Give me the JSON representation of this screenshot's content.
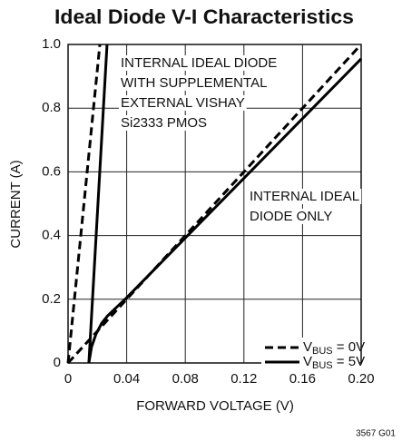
{
  "chart_data": {
    "type": "line",
    "title": "Ideal Diode V-I Characteristics",
    "xlabel": "FORWARD VOLTAGE (V)",
    "ylabel": "CURRENT (A)",
    "xlim": [
      0,
      0.2
    ],
    "ylim": [
      0,
      1
    ],
    "xticks": [
      0,
      0.04,
      0.08,
      0.12,
      0.16,
      {
        "value": 0.2,
        "label": "0.20"
      }
    ],
    "yticks": [
      0,
      0.2,
      0.4,
      0.6,
      0.8,
      {
        "value": 1,
        "label": "1.0"
      }
    ],
    "grid": true,
    "series": [
      {
        "color": "#000000",
        "style": "dashed",
        "x": [
          0,
          0.0217
        ],
        "values": [
          0,
          1
        ]
      },
      {
        "color": "#000000",
        "style": "solid",
        "x": [
          0.0142,
          0.0266
        ],
        "values": [
          0,
          1
        ]
      },
      {
        "color": "#000000",
        "style": "dashed",
        "x": [
          0,
          0.198
        ],
        "values": [
          0,
          0.99
        ]
      },
      {
        "color": "#000000",
        "style": "solid",
        "x": [
          0.0142,
          0.016,
          0.019,
          0.023,
          0.027,
          0.032,
          0.04,
          0.2
        ],
        "values": [
          0,
          0.05,
          0.09,
          0.125,
          0.148,
          0.17,
          0.205,
          0.955
        ]
      }
    ],
    "legend": [
      {
        "label": "V",
        "subscript": "BUS",
        "suffix": " = 0V",
        "style": "dashed"
      },
      {
        "label": "V",
        "subscript": "BUS",
        "suffix": " = 5V",
        "style": "solid"
      }
    ],
    "annotations": [
      {
        "lines": [
          "INTERNAL IDEAL DIODE",
          "WITH SUPPLEMENTAL",
          "EXTERNAL VISHAY",
          "Si2333 PMOS"
        ]
      },
      {
        "lines": [
          "INTERNAL IDEAL",
          "DIODE ONLY"
        ]
      }
    ],
    "footnote": "3567 G01"
  }
}
